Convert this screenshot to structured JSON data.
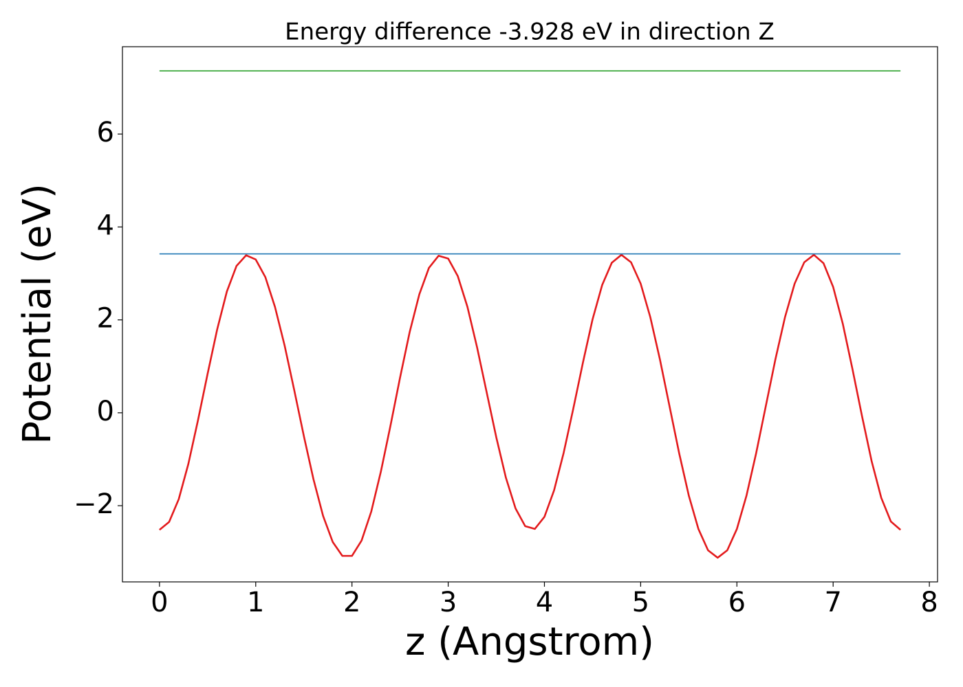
{
  "chart_data": {
    "type": "line",
    "title": "Energy difference -3.928 eV in direction Z",
    "xlabel": "z (Angstrom)",
    "ylabel": "Potential (eV)",
    "xlim": [
      -0.385,
      8.085
    ],
    "ylim": [
      -3.64,
      7.88
    ],
    "xticks": [
      0,
      1,
      2,
      3,
      4,
      5,
      6,
      7,
      8
    ],
    "yticks": [
      {
        "value": -2,
        "label": "−2"
      },
      0,
      2,
      4,
      6
    ],
    "grid": false,
    "series": [
      {
        "color": "#e31a1c",
        "x": [
          0,
          0.1,
          0.2,
          0.3,
          0.4,
          0.5,
          0.6,
          0.7,
          0.8,
          0.9,
          1.0,
          1.1,
          1.2,
          1.3,
          1.4,
          1.5,
          1.6,
          1.7,
          1.8,
          1.9,
          2.0,
          2.1,
          2.2,
          2.3,
          2.4,
          2.5,
          2.6,
          2.7,
          2.8,
          2.9,
          3.0,
          3.1,
          3.2,
          3.3,
          3.4,
          3.5,
          3.6,
          3.7,
          3.8,
          3.9,
          4.0,
          4.1,
          4.2,
          4.3,
          4.4,
          4.5,
          4.6,
          4.7,
          4.8,
          4.9,
          5.0,
          5.1,
          5.2,
          5.3,
          5.4,
          5.5,
          5.6,
          5.7,
          5.8,
          5.9,
          6.0,
          6.1,
          6.2,
          6.3,
          6.4,
          6.5,
          6.6,
          6.7,
          6.8,
          6.9,
          7.0,
          7.1,
          7.2,
          7.3,
          7.4,
          7.5,
          7.6,
          7.7
        ],
        "values": [
          -2.52,
          -2.35,
          -1.86,
          -1.1,
          -0.16,
          0.84,
          1.8,
          2.61,
          3.16,
          3.39,
          3.3,
          2.92,
          2.28,
          1.45,
          0.49,
          -0.5,
          -1.43,
          -2.22,
          -2.78,
          -3.08,
          -3.08,
          -2.75,
          -2.13,
          -1.27,
          -0.28,
          0.76,
          1.74,
          2.55,
          3.12,
          3.38,
          3.32,
          2.94,
          2.28,
          1.41,
          0.44,
          -0.53,
          -1.4,
          -2.06,
          -2.44,
          -2.5,
          -2.24,
          -1.67,
          -0.86,
          0.09,
          1.08,
          2.01,
          2.75,
          3.23,
          3.4,
          3.24,
          2.78,
          2.06,
          1.15,
          0.14,
          -0.87,
          -1.78,
          -2.5,
          -2.96,
          -3.12,
          -2.96,
          -2.5,
          -1.78,
          -0.87,
          0.14,
          1.15,
          2.06,
          2.78,
          3.24,
          3.4,
          3.22,
          2.71,
          1.92,
          0.95,
          -0.07,
          -1.04,
          -1.83,
          -2.34,
          -2.52
        ]
      },
      {
        "color": "#1f77b4",
        "x": [
          0,
          7.7
        ],
        "values": [
          3.42,
          3.42
        ]
      },
      {
        "color": "#2ca02c",
        "x": [
          0,
          7.7
        ],
        "values": [
          7.36,
          7.36
        ]
      }
    ]
  }
}
